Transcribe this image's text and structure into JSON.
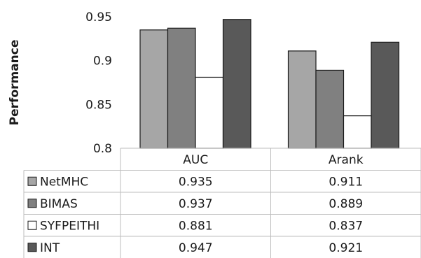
{
  "chart_data": {
    "type": "bar",
    "title": "",
    "xlabel": "",
    "ylabel": "Performance",
    "ylim": [
      0.8,
      0.95
    ],
    "yticks": [
      "0.8",
      "0.85",
      "0.9",
      "0.95"
    ],
    "grid": false,
    "legend": "table-below",
    "categories": [
      "AUC",
      "Arank"
    ],
    "series": [
      {
        "name": "NetMHC",
        "values": [
          0.935,
          0.911
        ],
        "value_labels": [
          "0.935",
          "0.911"
        ],
        "color": "#a6a6a6"
      },
      {
        "name": "BIMAS",
        "values": [
          0.937,
          0.889
        ],
        "value_labels": [
          "0.937",
          "0.889"
        ],
        "color": "#808080"
      },
      {
        "name": "SYFPEITHI",
        "values": [
          0.881,
          0.837
        ],
        "value_labels": [
          "0.881",
          "0.837"
        ],
        "color": "#ffffff"
      },
      {
        "name": "INT",
        "values": [
          0.947,
          0.921
        ],
        "value_labels": [
          "0.947",
          "0.921"
        ],
        "color": "#595959"
      }
    ]
  }
}
